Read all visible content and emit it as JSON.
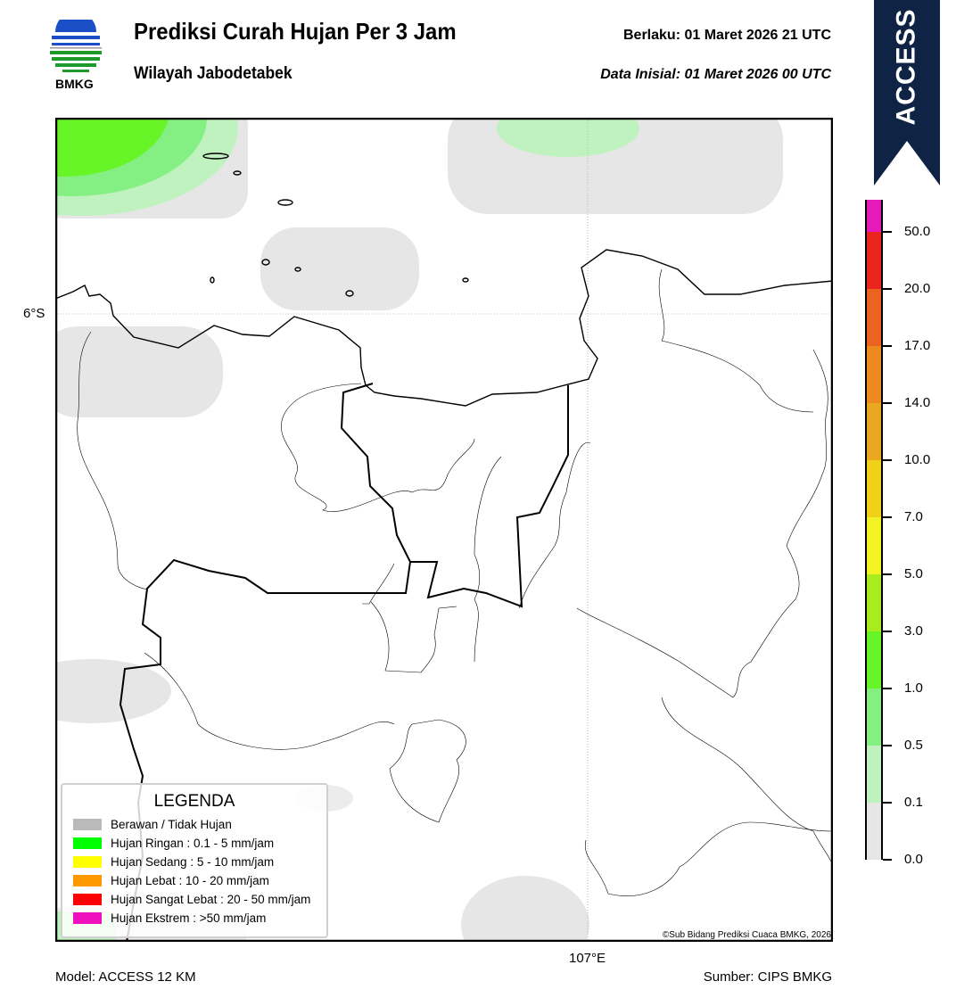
{
  "header": {
    "title": "Prediksi Curah Hujan Per 3 Jam",
    "subtitle": "Wilayah Jabodetabek",
    "valid": "Berlaku:  01 Maret 2026 21 UTC",
    "initial": "Data Inisial:  01 Maret 2026 00 UTC",
    "logo_text": "BMKG",
    "model_banner": "ACCESS",
    "banner_color": "#0f2344"
  },
  "map": {
    "lat_label": "6°S",
    "lon_label": "107°E",
    "copyright": "©Sub Bidang Prediksi Cuaca BMKG, 2026"
  },
  "legend": {
    "title": "LEGENDA",
    "items": [
      {
        "label": "Berawan / Tidak Hujan",
        "color": "#bababa"
      },
      {
        "label": "Hujan Ringan : 0.1 - 5 mm/jam",
        "color": "#00ff00"
      },
      {
        "label": "Hujan Sedang : 5 - 10 mm/jam",
        "color": "#ffff00"
      },
      {
        "label": "Hujan Lebat : 10 - 20 mm/jam",
        "color": "#ff9900"
      },
      {
        "label": "Hujan Sangat Lebat : 20 - 50 mm/jam",
        "color": "#ff0000"
      },
      {
        "label": "Hujan Ekstrem : >50 mm/jam",
        "color": "#ee11bb"
      }
    ]
  },
  "colorbar": {
    "ticks": [
      "0.0",
      "0.1",
      "0.5",
      "1.0",
      "3.0",
      "5.0",
      "7.0",
      "10.0",
      "14.0",
      "17.0",
      "20.0",
      "50.0"
    ],
    "colors": [
      "#e6e6e6",
      "#c0f2c0",
      "#84f084",
      "#68f528",
      "#a8ec20",
      "#f2f224",
      "#f0d018",
      "#eaa820",
      "#ec8a20",
      "#ea6420",
      "#ec2420",
      "#e61ab8"
    ]
  },
  "footer": {
    "model": "Model: ACCESS 12 KM",
    "source": "Sumber: CIPS BMKG"
  }
}
